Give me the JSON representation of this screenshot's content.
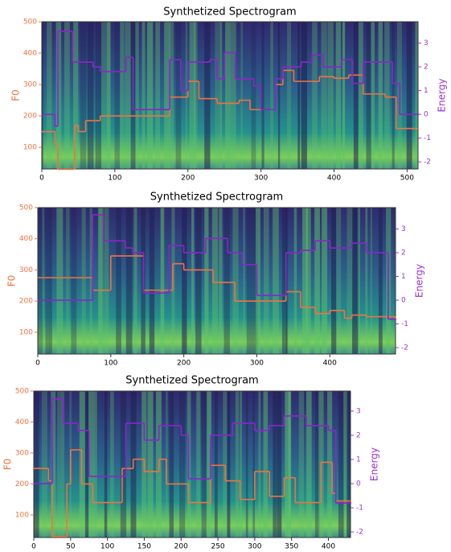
{
  "chart_data": [
    {
      "type": "step",
      "title": "Synthetized Spectrogram",
      "ylabel": "F0",
      "y2label": "Energy",
      "xlim": [
        0,
        515
      ],
      "xticks": [
        0,
        100,
        200,
        300,
        400,
        500
      ],
      "ylim": [
        31,
        500
      ],
      "yticks": [
        100,
        200,
        300,
        400,
        500
      ],
      "y2lim": [
        -2.3,
        3.9
      ],
      "y2ticks": [
        -2,
        -1,
        0,
        1,
        2,
        3
      ],
      "ycolor": "#f07240",
      "y2color": "#9b30d9",
      "series": [
        {
          "color": "#f07240",
          "x": [
            0,
            18,
            22,
            42,
            45,
            50,
            60,
            80,
            170,
            175,
            200,
            215,
            240,
            270,
            285,
            320,
            330,
            345,
            380,
            400,
            420,
            440,
            470,
            485,
            515
          ],
          "values": [
            150,
            110,
            30,
            30,
            170,
            150,
            185,
            200,
            200,
            260,
            310,
            255,
            240,
            250,
            220,
            300,
            345,
            310,
            325,
            320,
            330,
            270,
            260,
            160,
            160
          ]
        },
        {
          "color": "#8e24c8",
          "axis": "y2",
          "x": [
            0,
            18,
            22,
            42,
            70,
            80,
            115,
            125,
            170,
            175,
            190,
            200,
            230,
            240,
            250,
            265,
            290,
            300,
            320,
            330,
            355,
            370,
            385,
            410,
            425,
            440,
            480,
            490,
            515
          ],
          "values": [
            0,
            -0.5,
            3.5,
            2.2,
            2.0,
            1.8,
            2.4,
            0.2,
            0.2,
            2.3,
            1.0,
            2.2,
            2.3,
            1.5,
            2.6,
            1.5,
            1.2,
            0.2,
            1.5,
            2.0,
            2.2,
            2.5,
            2.0,
            2.3,
            1.3,
            2.2,
            1.3,
            0,
            0
          ]
        }
      ]
    },
    {
      "type": "step",
      "title": "Synthetized Spectrogram",
      "ylabel": "F0",
      "y2label": "Energy",
      "xlim": [
        0,
        490
      ],
      "xticks": [
        0,
        100,
        200,
        300,
        400
      ],
      "ylim": [
        30,
        500
      ],
      "yticks": [
        100,
        200,
        300,
        400,
        500
      ],
      "y2lim": [
        -2.27,
        3.9
      ],
      "y2ticks": [
        -2,
        -1,
        0,
        1,
        2,
        3
      ],
      "ycolor": "#f07240",
      "y2color": "#9b30d9",
      "series": [
        {
          "color": "#f07240",
          "x": [
            0,
            75,
            100,
            145,
            185,
            200,
            240,
            270,
            310,
            340,
            360,
            380,
            400,
            420,
            430,
            450,
            490
          ],
          "values": [
            275,
            235,
            345,
            235,
            320,
            300,
            260,
            200,
            200,
            230,
            180,
            160,
            170,
            145,
            155,
            150,
            140
          ]
        },
        {
          "color": "#8e24c8",
          "axis": "y2",
          "x": [
            0,
            75,
            90,
            120,
            130,
            145,
            175,
            180,
            200,
            230,
            260,
            280,
            300,
            340,
            360,
            380,
            400,
            430,
            450,
            480,
            490
          ],
          "values": [
            0,
            3.6,
            2.5,
            2.2,
            2.0,
            0.3,
            0.3,
            2.3,
            2.0,
            2.6,
            2.0,
            1.5,
            0.2,
            2.0,
            2.1,
            2.5,
            2.2,
            2.4,
            2.0,
            -0.8,
            -0.8
          ]
        }
      ]
    },
    {
      "type": "step",
      "title": "Synthetized Spectrogram",
      "ylabel": "F0",
      "y2label": "Energy",
      "xlim": [
        0,
        430
      ],
      "xticks": [
        0,
        50,
        100,
        150,
        200,
        250,
        300,
        350,
        400
      ],
      "ylim": [
        27,
        500
      ],
      "yticks": [
        100,
        200,
        300,
        400,
        500
      ],
      "y2lim": [
        -2.23,
        3.83
      ],
      "y2ticks": [
        -2,
        -1,
        0,
        1,
        2,
        3
      ],
      "ycolor": "#f07240",
      "y2color": "#9b30d9",
      "series": [
        {
          "color": "#f07240",
          "x": [
            0,
            20,
            25,
            40,
            45,
            50,
            65,
            80,
            120,
            135,
            150,
            170,
            180,
            210,
            240,
            260,
            280,
            300,
            320,
            340,
            355,
            390,
            405,
            410,
            430
          ],
          "values": [
            250,
            210,
            30,
            30,
            200,
            310,
            200,
            140,
            250,
            280,
            240,
            280,
            200,
            140,
            260,
            210,
            150,
            240,
            160,
            220,
            140,
            270,
            170,
            145,
            145
          ]
        },
        {
          "color": "#8e24c8",
          "axis": "y2",
          "x": [
            0,
            25,
            40,
            60,
            75,
            125,
            150,
            170,
            200,
            210,
            240,
            270,
            300,
            320,
            340,
            370,
            400,
            410,
            430
          ],
          "values": [
            0,
            3.5,
            2.5,
            2.2,
            0.3,
            2.5,
            1.8,
            2.4,
            2.0,
            0.2,
            2.0,
            2.5,
            2.2,
            2.4,
            2.8,
            2.4,
            2.2,
            -0.8,
            -0.8
          ]
        }
      ]
    }
  ]
}
